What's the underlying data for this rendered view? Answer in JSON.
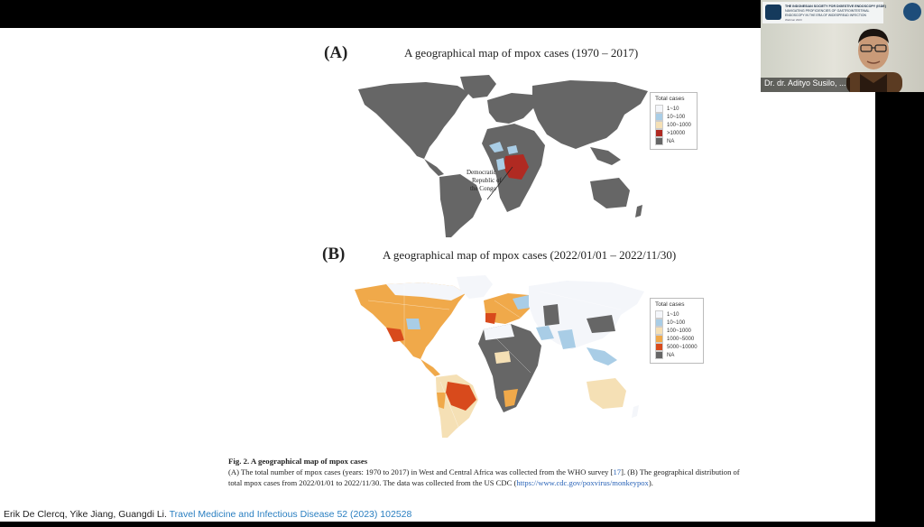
{
  "slide": {
    "panel_a": {
      "label": "(A)",
      "title": "A geographical map of mpox cases (1970 – 2017)",
      "annotation": [
        "Democratic",
        "Republic of",
        "the Congo"
      ],
      "legend": {
        "title": "Total cases",
        "items": [
          {
            "label": "1~10",
            "color": "#f4f6fa"
          },
          {
            "label": "10~100",
            "color": "#a9cde6"
          },
          {
            "label": "100~1000",
            "color": "#f5e0b5"
          },
          {
            "label": ">10000",
            "color": "#b02a22"
          },
          {
            "label": "NA",
            "color": "#666666"
          }
        ]
      }
    },
    "panel_b": {
      "label": "(B)",
      "title": "A geographical map of mpox cases (2022/01/01 – 2022/11/30)",
      "legend": {
        "title": "Total cases",
        "items": [
          {
            "label": "1~10",
            "color": "#f4f6fa"
          },
          {
            "label": "10~100",
            "color": "#a9cde6"
          },
          {
            "label": "100~1000",
            "color": "#f5e0b5"
          },
          {
            "label": "1000~5000",
            "color": "#f0a94a"
          },
          {
            "label": "5000~10000",
            "color": "#d84a1c"
          },
          {
            "label": "NA",
            "color": "#666666"
          }
        ]
      }
    },
    "caption": {
      "title": "Fig. 2.  A geographical map of mpox cases",
      "line1_start": "(A) The total number of mpox cases (years: 1970 to 2017) in West and Central Africa was collected from the WHO survey [",
      "ref": "17",
      "line1_end": "]. (B) The geographical distribution of",
      "line2_start": "total mpox cases from 2022/01/01 to 2022/11/30. The data was collected from the US CDC (",
      "url": "https://www.cdc.gov/poxvirus/monkeypox",
      "line2_end": ")."
    },
    "citation": {
      "authors": "Erik De Clercq, Yike Jiang, Guangdi Li.",
      "journal": "Travel Medicine and Infectious Disease 52 (2023) 102528"
    }
  },
  "webcam": {
    "banner": {
      "line1": "THE INDONESIAN SOCIETY FOR DIGESTIVE ENDOSCOPY (ISDE)",
      "line2": "NAVIGATING PROFICIENCIES OF GASTROINTESTINAL",
      "line3": "ENDOSCOPY IN THE ERA OF WIDESPREAD INFECTION",
      "line4": "Webinar 2023"
    },
    "name": "Dr. dr. Adityo Susilo, ..."
  },
  "colors": {
    "land_na": "#666666",
    "drc": "#b02a22",
    "link": "#2a64b8",
    "journal": "#2a7fc1"
  }
}
